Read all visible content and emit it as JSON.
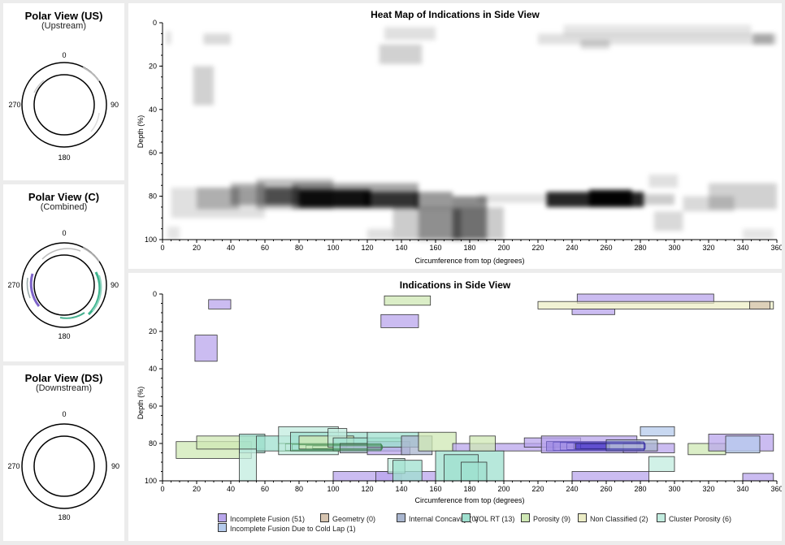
{
  "polar_panels": [
    {
      "title": "Polar View (US)",
      "subtitle": "(Upstream)",
      "labels": {
        "top": "0",
        "right": "90",
        "bottom": "180",
        "left": "270"
      }
    },
    {
      "title": "Polar View (C)",
      "subtitle": "(Combined)",
      "labels": {
        "top": "0",
        "right": "90",
        "bottom": "180",
        "left": "270"
      }
    },
    {
      "title": "Polar View (DS)",
      "subtitle": "(Downstream)",
      "labels": {
        "top": "0",
        "right": "90",
        "bottom": "180",
        "left": "270"
      }
    }
  ],
  "colors": {
    "incomplete_fusion": "#b9a6ec",
    "geometry": "#d6c4b0",
    "internal_concavity": "#a9b6cf",
    "vol_rt": "#9fe0cf",
    "porosity": "#cfe8b4",
    "non_classified": "#ecedc6",
    "cluster_porosity": "#c2ecdf",
    "cold_lap": "#b5cbec",
    "dark_cluster": "#4a38c8"
  },
  "chart_data": [
    {
      "type": "heatmap",
      "title": "Heat Map of Indications in Side View",
      "xlabel": "Circumference from top (degrees)",
      "ylabel": "Depth (%)",
      "xlim": [
        0,
        360
      ],
      "ylim": [
        0,
        100
      ],
      "x_ticks": [
        0,
        20,
        40,
        60,
        80,
        100,
        120,
        140,
        160,
        180,
        200,
        220,
        240,
        260,
        280,
        300,
        320,
        340,
        360
      ],
      "y_ticks": [
        0,
        20,
        40,
        60,
        80,
        100
      ],
      "cells": [
        {
          "x0": 2,
          "x1": 5,
          "y0": 4,
          "y1": 10,
          "v": 0.12
        },
        {
          "x0": 18,
          "x1": 30,
          "y0": 20,
          "y1": 38,
          "v": 0.18
        },
        {
          "x0": 24,
          "x1": 40,
          "y0": 5,
          "y1": 10,
          "v": 0.15
        },
        {
          "x0": 130,
          "x1": 160,
          "y0": 2,
          "y1": 8,
          "v": 0.12
        },
        {
          "x0": 127,
          "x1": 152,
          "y0": 10,
          "y1": 19,
          "v": 0.18
        },
        {
          "x0": 220,
          "x1": 360,
          "y0": 5,
          "y1": 10,
          "v": 0.12
        },
        {
          "x0": 235,
          "x1": 345,
          "y0": 1,
          "y1": 6,
          "v": 0.1
        },
        {
          "x0": 245,
          "x1": 262,
          "y0": 8,
          "y1": 12,
          "v": 0.16
        },
        {
          "x0": 346,
          "x1": 358,
          "y0": 5,
          "y1": 10,
          "v": 0.25
        },
        {
          "x0": 5,
          "x1": 60,
          "y0": 76,
          "y1": 90,
          "v": 0.12
        },
        {
          "x0": 20,
          "x1": 45,
          "y0": 76,
          "y1": 86,
          "v": 0.22
        },
        {
          "x0": 40,
          "x1": 60,
          "y0": 74,
          "y1": 84,
          "v": 0.3
        },
        {
          "x0": 55,
          "x1": 100,
          "y0": 72,
          "y1": 86,
          "v": 0.25
        },
        {
          "x0": 60,
          "x1": 80,
          "y0": 76,
          "y1": 84,
          "v": 0.6
        },
        {
          "x0": 76,
          "x1": 150,
          "y0": 74,
          "y1": 86,
          "v": 0.35
        },
        {
          "x0": 80,
          "x1": 122,
          "y0": 77,
          "y1": 85,
          "v": 0.9
        },
        {
          "x0": 118,
          "x1": 150,
          "y0": 78,
          "y1": 85,
          "v": 0.7
        },
        {
          "x0": 148,
          "x1": 170,
          "y0": 78,
          "y1": 86,
          "v": 0.4
        },
        {
          "x0": 135,
          "x1": 200,
          "y0": 85,
          "y1": 100,
          "v": 0.2
        },
        {
          "x0": 170,
          "x1": 190,
          "y0": 80,
          "y1": 100,
          "v": 0.45
        },
        {
          "x0": 150,
          "x1": 175,
          "y0": 86,
          "y1": 100,
          "v": 0.3
        },
        {
          "x0": 185,
          "x1": 225,
          "y0": 79,
          "y1": 83,
          "v": 0.12
        },
        {
          "x0": 225,
          "x1": 282,
          "y0": 78,
          "y1": 85,
          "v": 0.85
        },
        {
          "x0": 250,
          "x1": 275,
          "y0": 77,
          "y1": 85,
          "v": 0.95
        },
        {
          "x0": 282,
          "x1": 300,
          "y0": 79,
          "y1": 84,
          "v": 0.2
        },
        {
          "x0": 285,
          "x1": 302,
          "y0": 70,
          "y1": 76,
          "v": 0.12
        },
        {
          "x0": 288,
          "x1": 305,
          "y0": 87,
          "y1": 96,
          "v": 0.15
        },
        {
          "x0": 305,
          "x1": 335,
          "y0": 80,
          "y1": 87,
          "v": 0.15
        },
        {
          "x0": 320,
          "x1": 360,
          "y0": 74,
          "y1": 86,
          "v": 0.18
        },
        {
          "x0": 340,
          "x1": 358,
          "y0": 95,
          "y1": 100,
          "v": 0.1
        },
        {
          "x0": 3,
          "x1": 10,
          "y0": 94,
          "y1": 100,
          "v": 0.1
        },
        {
          "x0": 120,
          "x1": 135,
          "y0": 95,
          "y1": 100,
          "v": 0.12
        }
      ]
    },
    {
      "type": "scatter",
      "title": "Indications in Side View",
      "xlabel": "Circumference from top (degrees)",
      "ylabel": "Depth (%)",
      "xlim": [
        0,
        360
      ],
      "ylim": [
        0,
        100
      ],
      "x_ticks": [
        0,
        20,
        40,
        60,
        80,
        100,
        120,
        140,
        160,
        180,
        200,
        220,
        240,
        260,
        280,
        300,
        320,
        340,
        360
      ],
      "y_ticks": [
        0,
        20,
        40,
        60,
        80,
        100
      ],
      "legend_position": "bottom",
      "series": [
        {
          "name": "Incomplete Fusion (51)",
          "key": "incomplete_fusion"
        },
        {
          "name": "Geometry (0)",
          "key": "geometry"
        },
        {
          "name": "Internal Concavity (0)",
          "key": "internal_concavity"
        },
        {
          "name": "VOL RT (13)",
          "key": "vol_rt"
        },
        {
          "name": "Porosity (9)",
          "key": "porosity"
        },
        {
          "name": "Non Classified (2)",
          "key": "non_classified"
        },
        {
          "name": "Cluster Porosity (6)",
          "key": "cluster_porosity"
        },
        {
          "name": "Incomplete Fusion Due to Cold Lap (1)",
          "key": "cold_lap"
        }
      ],
      "boxes": [
        {
          "k": "incomplete_fusion",
          "x0": 27,
          "x1": 40,
          "y0": 3,
          "y1": 8
        },
        {
          "k": "incomplete_fusion",
          "x0": 19,
          "x1": 32,
          "y0": 22,
          "y1": 36
        },
        {
          "k": "porosity",
          "x0": 130,
          "x1": 157,
          "y0": 1,
          "y1": 6
        },
        {
          "k": "incomplete_fusion",
          "x0": 128,
          "x1": 150,
          "y0": 11,
          "y1": 18
        },
        {
          "k": "incomplete_fusion",
          "x0": 243,
          "x1": 323,
          "y0": 0,
          "y1": 5
        },
        {
          "k": "non_classified",
          "x0": 220,
          "x1": 358,
          "y0": 4,
          "y1": 8
        },
        {
          "k": "geometry",
          "x0": 344,
          "x1": 356,
          "y0": 4,
          "y1": 8
        },
        {
          "k": "incomplete_fusion",
          "x0": 240,
          "x1": 265,
          "y0": 8,
          "y1": 11
        },
        {
          "k": "porosity",
          "x0": 8,
          "x1": 52,
          "y0": 79,
          "y1": 88
        },
        {
          "k": "porosity",
          "x0": 20,
          "x1": 60,
          "y0": 76,
          "y1": 83
        },
        {
          "k": "vol_rt",
          "x0": 45,
          "x1": 60,
          "y0": 75,
          "y1": 85
        },
        {
          "k": "cluster_porosity",
          "x0": 45,
          "x1": 55,
          "y0": 83,
          "y1": 100
        },
        {
          "k": "vol_rt",
          "x0": 55,
          "x1": 100,
          "y0": 76,
          "y1": 84
        },
        {
          "k": "cluster_porosity",
          "x0": 68,
          "x1": 103,
          "y0": 71,
          "y1": 86
        },
        {
          "k": "vol_rt",
          "x0": 75,
          "x1": 120,
          "y0": 74,
          "y1": 84
        },
        {
          "k": "porosity",
          "x0": 80,
          "x1": 112,
          "y0": 76,
          "y1": 83
        },
        {
          "k": "cluster_porosity",
          "x0": 97,
          "x1": 108,
          "y0": 72,
          "y1": 82
        },
        {
          "k": "vol_rt",
          "x0": 100,
          "x1": 140,
          "y0": 77,
          "y1": 84
        },
        {
          "k": "internal_concavity",
          "x0": 104,
          "x1": 120,
          "y0": 80,
          "y1": 85
        },
        {
          "k": "incomplete_fusion",
          "x0": 120,
          "x1": 145,
          "y0": 79,
          "y1": 86
        },
        {
          "k": "vol_rt",
          "x0": 120,
          "x1": 150,
          "y0": 74,
          "y1": 82
        },
        {
          "k": "internal_concavity",
          "x0": 140,
          "x1": 158,
          "y0": 76,
          "y1": 86
        },
        {
          "k": "porosity",
          "x0": 150,
          "x1": 172,
          "y0": 74,
          "y1": 84
        },
        {
          "k": "incomplete_fusion",
          "x0": 170,
          "x1": 230,
          "y0": 80,
          "y1": 84
        },
        {
          "k": "vol_rt",
          "x0": 160,
          "x1": 200,
          "y0": 84,
          "y1": 100
        },
        {
          "k": "vol_rt",
          "x0": 165,
          "x1": 185,
          "y0": 86,
          "y1": 100
        },
        {
          "k": "vol_rt",
          "x0": 175,
          "x1": 190,
          "y0": 90,
          "y1": 100
        },
        {
          "k": "porosity",
          "x0": 180,
          "x1": 195,
          "y0": 76,
          "y1": 84
        },
        {
          "k": "incomplete_fusion",
          "x0": 100,
          "x1": 140,
          "y0": 95,
          "y1": 100
        },
        {
          "k": "incomplete_fusion",
          "x0": 125,
          "x1": 160,
          "y0": 95,
          "y1": 100
        },
        {
          "k": "cluster_porosity",
          "x0": 132,
          "x1": 142,
          "y0": 88,
          "y1": 96
        },
        {
          "k": "vol_rt",
          "x0": 135,
          "x1": 152,
          "y0": 89,
          "y1": 100
        },
        {
          "k": "incomplete_fusion",
          "x0": 212,
          "x1": 245,
          "y0": 77,
          "y1": 82
        },
        {
          "k": "dark_cluster",
          "x0": 225,
          "x1": 280,
          "y0": 79,
          "y1": 84
        },
        {
          "k": "incomplete_fusion",
          "x0": 222,
          "x1": 278,
          "y0": 76,
          "y1": 85
        },
        {
          "k": "dark_cluster",
          "x0": 242,
          "x1": 262,
          "y0": 80,
          "y1": 83
        },
        {
          "k": "incomplete_fusion",
          "x0": 270,
          "x1": 300,
          "y0": 80,
          "y1": 85
        },
        {
          "k": "internal_concavity",
          "x0": 260,
          "x1": 290,
          "y0": 78,
          "y1": 84
        },
        {
          "k": "cold_lap",
          "x0": 280,
          "x1": 300,
          "y0": 71,
          "y1": 76
        },
        {
          "k": "cluster_porosity",
          "x0": 285,
          "x1": 300,
          "y0": 87,
          "y1": 95
        },
        {
          "k": "porosity",
          "x0": 308,
          "x1": 330,
          "y0": 80,
          "y1": 86
        },
        {
          "k": "incomplete_fusion",
          "x0": 320,
          "x1": 358,
          "y0": 75,
          "y1": 84
        },
        {
          "k": "cold_lap",
          "x0": 330,
          "x1": 350,
          "y0": 76,
          "y1": 85
        },
        {
          "k": "incomplete_fusion",
          "x0": 240,
          "x1": 285,
          "y0": 95,
          "y1": 100
        },
        {
          "k": "incomplete_fusion",
          "x0": 340,
          "x1": 358,
          "y0": 96,
          "y1": 100
        }
      ]
    }
  ]
}
